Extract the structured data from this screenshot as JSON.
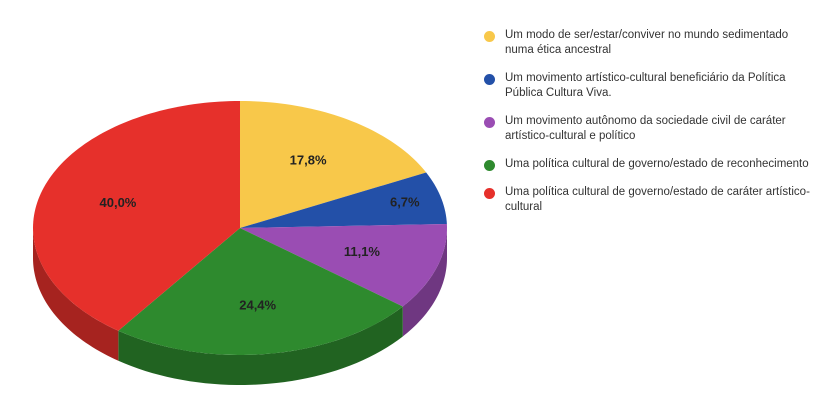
{
  "chart_data": {
    "type": "pie",
    "categories": [
      "Um modo de ser/estar/conviver no mundo sedimentado numa ética ancestral",
      "Um movimento artístico-cultural beneficiário da Política Pública Cultura Viva.",
      "Um movimento autônomo da sociedade civil de caráter artístico-cultural e político",
      "Uma política cultural de governo/estado de reconhecimento",
      "Uma política cultural de governo/estado de caráter artístico-cultural"
    ],
    "values": [
      17.8,
      6.7,
      11.1,
      24.4,
      40.0
    ],
    "value_labels": [
      "17,8%",
      "6,7%",
      "11,1%",
      "24,4%",
      "40,0%"
    ],
    "colors": [
      "#f8c84a",
      "#2350a8",
      "#9a4db3",
      "#2e8a2e",
      "#e6302b"
    ],
    "legend": "right"
  }
}
